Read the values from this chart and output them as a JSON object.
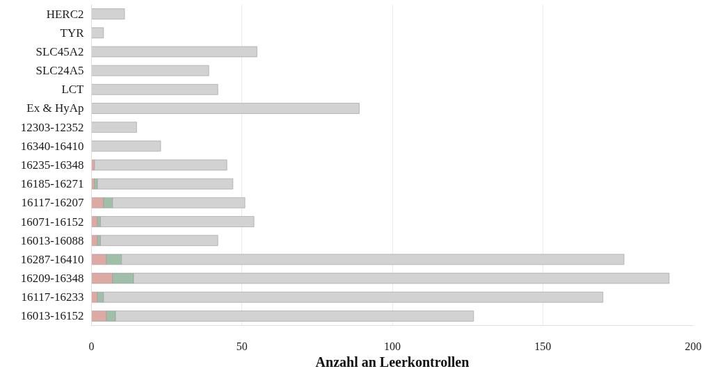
{
  "chart_data": {
    "type": "bar",
    "orientation": "horizontal",
    "stacked": true,
    "xlabel": "Anzahl an Leerkontrollen",
    "categories": [
      "HERC2",
      "TYR",
      "SLC45A2",
      "SLC24A5",
      "LCT",
      "Ex & HyAp",
      "12303-12352",
      "16340-16410",
      "16235-16348",
      "16185-16271",
      "16117-16207",
      "16071-16152",
      "16013-16088",
      "16287-16410",
      "16209-16348",
      "16117-16233",
      "16013-16152"
    ],
    "series": [
      {
        "color": "#dcaaa2",
        "values": [
          null,
          null,
          null,
          null,
          null,
          null,
          null,
          null,
          1,
          1,
          4,
          2,
          2,
          5,
          7,
          2,
          5
        ]
      },
      {
        "color": "#9fbfa9",
        "values": [
          null,
          null,
          null,
          null,
          null,
          null,
          null,
          null,
          null,
          1,
          3,
          1,
          1,
          5,
          7,
          2,
          3
        ]
      },
      {
        "color": "#d2d2d2",
        "values": [
          11,
          4,
          55,
          39,
          42,
          89,
          15,
          23,
          44,
          45,
          44,
          51,
          39,
          167,
          178,
          166,
          119
        ]
      }
    ],
    "xlim": [
      0,
      200
    ],
    "xticks": [
      0,
      50,
      100,
      150,
      200
    ],
    "grid": "x"
  }
}
